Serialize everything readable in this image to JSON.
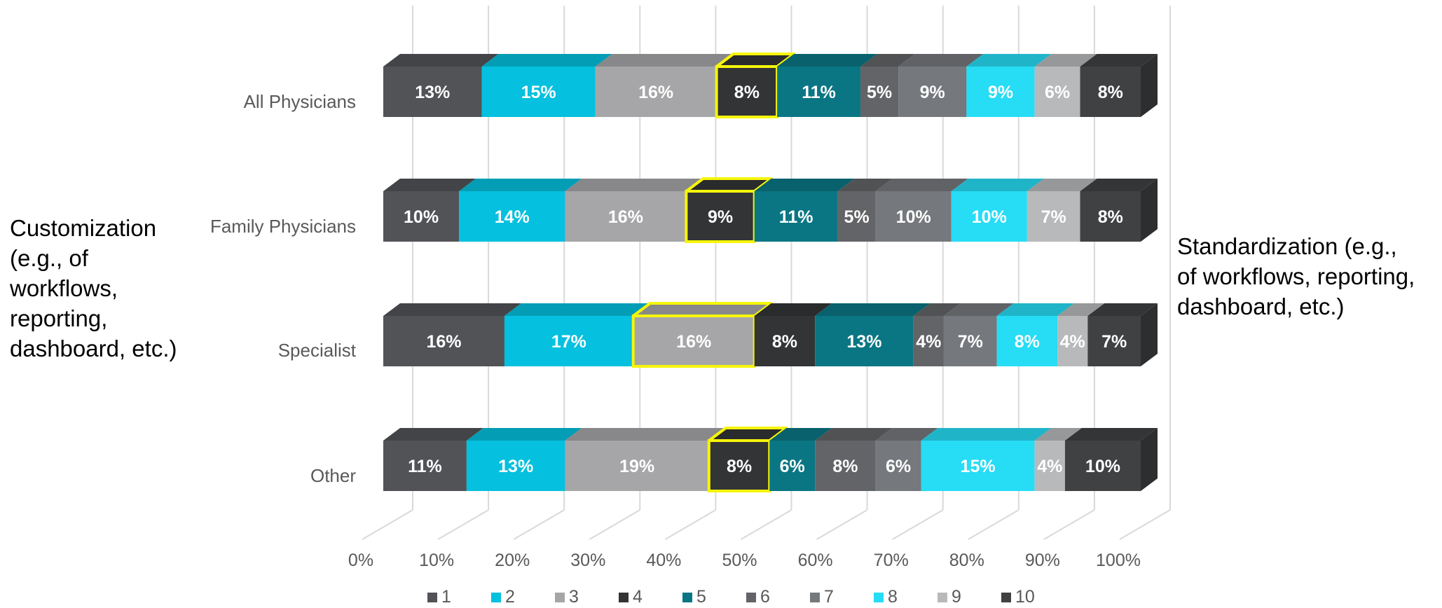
{
  "annotations": {
    "left": "Customization\n(e.g., of\nworkflows,\nreporting,\ndashboard, etc.)",
    "right": "Standardization (e.g.,\nof workflows, reporting,\ndashboard, etc.)"
  },
  "chart_data": {
    "type": "bar",
    "orientation": "horizontal",
    "stacked": "percent",
    "style": "3d",
    "categories": [
      "All Physicians",
      "Family Physicians",
      "Specialist",
      "Other"
    ],
    "xlim": [
      0,
      100
    ],
    "x_ticks": [
      "0%",
      "10%",
      "20%",
      "30%",
      "40%",
      "50%",
      "60%",
      "70%",
      "80%",
      "90%",
      "100%"
    ],
    "grid": true,
    "legend_position": "bottom",
    "series": [
      {
        "name": "1",
        "color": "#515357",
        "values": [
          13,
          10,
          16,
          11
        ]
      },
      {
        "name": "2",
        "color": "#05C0DE",
        "values": [
          15,
          14,
          17,
          13
        ]
      },
      {
        "name": "3",
        "color": "#A6A6A8",
        "values": [
          16,
          16,
          16,
          19
        ]
      },
      {
        "name": "4",
        "color": "#333436",
        "values": [
          8,
          9,
          8,
          8
        ]
      },
      {
        "name": "5",
        "color": "#0A7684",
        "values": [
          11,
          11,
          13,
          6
        ]
      },
      {
        "name": "6",
        "color": "#636467",
        "values": [
          5,
          5,
          4,
          8
        ]
      },
      {
        "name": "7",
        "color": "#75787C",
        "values": [
          9,
          10,
          7,
          6
        ]
      },
      {
        "name": "8",
        "color": "#27DCF5",
        "values": [
          9,
          10,
          8,
          15
        ]
      },
      {
        "name": "9",
        "color": "#B8B9BB",
        "values": [
          6,
          7,
          4,
          4
        ]
      },
      {
        "name": "10",
        "color": "#404143",
        "values": [
          8,
          8,
          7,
          10
        ]
      }
    ],
    "data_labels": [
      [
        "13%",
        "15%",
        "16%",
        "8%",
        "11%",
        "5%",
        "9%",
        "9%",
        "6%",
        "8%"
      ],
      [
        "10%",
        "14%",
        "16%",
        "9%",
        "11%",
        "5%",
        "10%",
        "10%",
        "7%",
        "8%"
      ],
      [
        "16%",
        "17%",
        "16%",
        "8%",
        "13%",
        "4%",
        "7%",
        "8%",
        "4%",
        "7%"
      ],
      [
        "11%",
        "13%",
        "19%",
        "8%",
        "6%",
        "8%",
        "6%",
        "15%",
        "4%",
        "10%"
      ]
    ],
    "highlighted_series_per_category": [
      3,
      3,
      2,
      3
    ],
    "highlight_color": "#F5F50A"
  }
}
